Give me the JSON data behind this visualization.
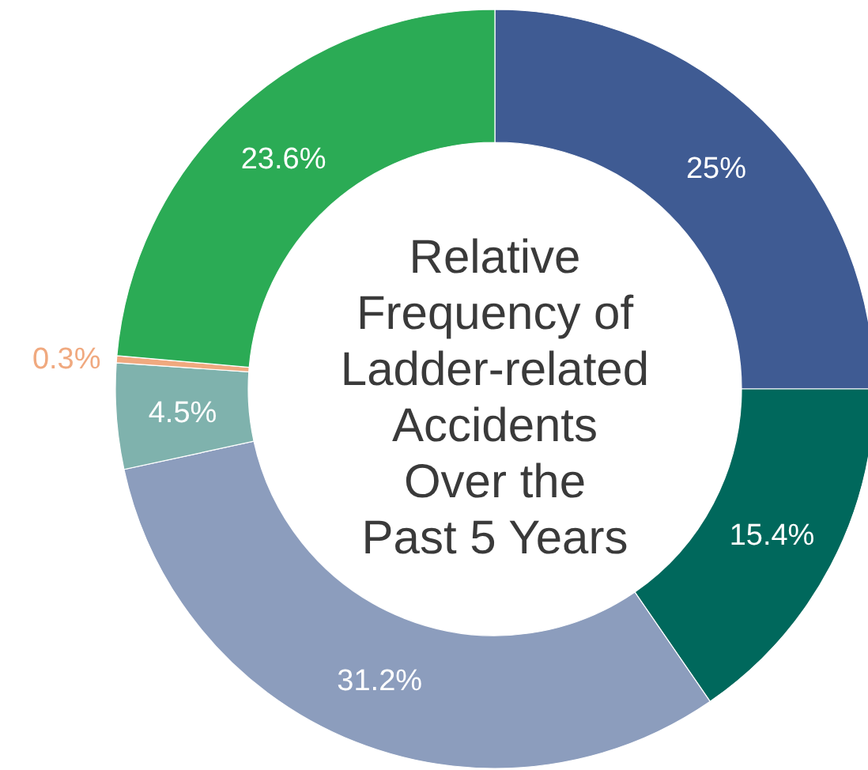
{
  "chart_data": {
    "type": "donut",
    "title": "Relative\nFrequency of\nLadder-related\nAccidents\nOver the\nPast 5 Years",
    "categories": [
      null,
      null,
      null,
      null,
      null,
      null
    ],
    "values": [
      25,
      15.4,
      31.2,
      4.5,
      0.3,
      23.6
    ],
    "colors": [
      "#3f5b93",
      "#00685c",
      "#8c9dbd",
      "#7fb2ad",
      "#f0a97f",
      "#2bab55"
    ],
    "value_labels": [
      "25%",
      "15.4%",
      "31.2%",
      "4.5%",
      "0.3%",
      "23.6%"
    ]
  }
}
